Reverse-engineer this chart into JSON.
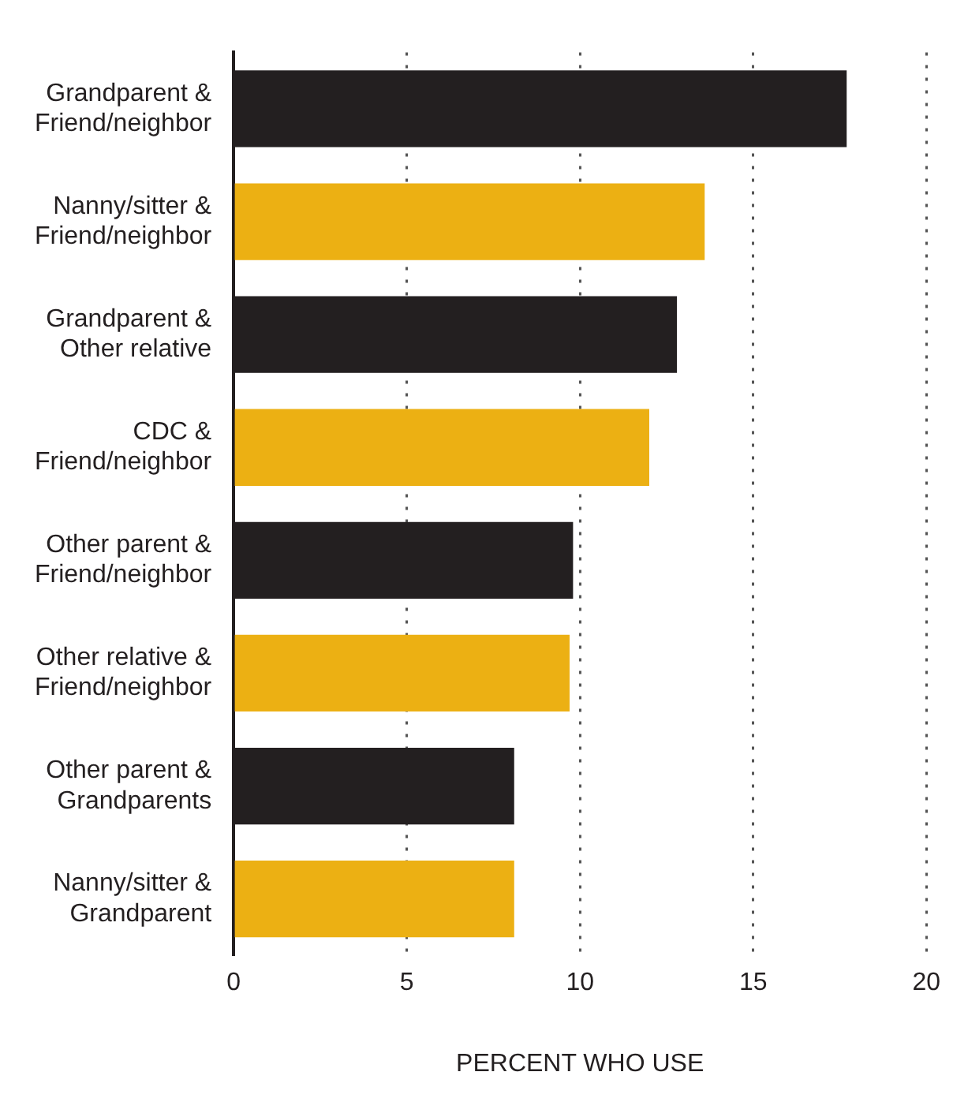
{
  "chart_data": {
    "type": "bar",
    "orientation": "horizontal",
    "categories": [
      "Grandparent & Friend/neighbor",
      "Nanny/sitter & Friend/neighbor",
      "Grandparent & Other relative",
      "CDC & Friend/neighbor",
      "Other parent & Friend/neighbor",
      "Other relative & Friend/neighbor",
      "Other parent & Grandparents",
      "Nanny/sitter & Grandparent"
    ],
    "values": [
      17.7,
      13.6,
      12.8,
      12.0,
      9.8,
      9.7,
      8.1,
      8.1
    ],
    "colors": [
      "#231f20",
      "#ecb013",
      "#231f20",
      "#ecb013",
      "#231f20",
      "#ecb013",
      "#231f20",
      "#ecb013"
    ],
    "xlim": [
      0,
      20
    ],
    "xticks": [
      0,
      5,
      10,
      15,
      20
    ],
    "xlabel": "PERCENT WHO USE",
    "grid": "x"
  }
}
